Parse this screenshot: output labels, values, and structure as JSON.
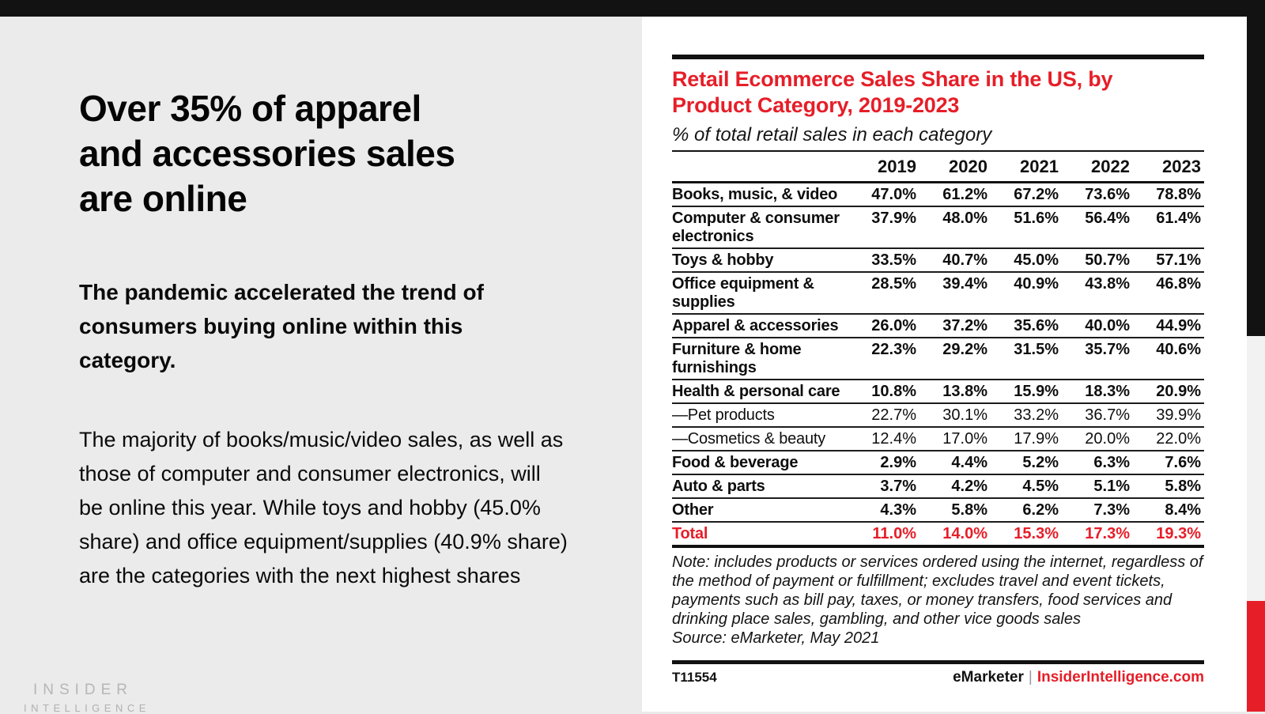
{
  "colors": {
    "accent_red": "#E61E28",
    "top_bar": "#121212",
    "page_background": "#ebebeb",
    "card_background": "#ffffff",
    "logo_gray": "#b6b6b6"
  },
  "left_panel": {
    "heading": "Over 35% of apparel\nand accessories sales\nare online",
    "paragraph_emphasis": "The pandemic accelerated the trend of consumers buying online within this category.",
    "paragraph_body": "The majority of books/music/video sales, as well as those of computer and consumer electronics, will be online this year. While toys and hobby (45.0% share) and office equipment/supplies (40.9% share) are the categories with the next highest shares",
    "logo": {
      "line1": "INSIDER",
      "line2": "INTELLIGENCE"
    }
  },
  "report": {
    "note": "Note: includes products or services ordered using the internet, regardless of the method of payment or fulfillment; excludes travel and event tickets, payments such as bill pay, taxes, or money transfers, food services and drinking place sales, gambling, and other vice goods sales",
    "source": "Source: eMarketer, May 2021",
    "footer": {
      "code": "T11554",
      "brand": "eMarketer",
      "divider": "|",
      "site": "InsiderIntelligence.com"
    }
  },
  "chart_data": {
    "type": "table",
    "title": "Retail Ecommerce Sales Share in the US, by\nProduct Category, 2019-2023",
    "subtitle": "% of total retail sales in each category",
    "columns": [
      "2019",
      "2020",
      "2021",
      "2022",
      "2023"
    ],
    "rows": [
      {
        "label": "Books, music, & video",
        "style": "bold",
        "values": [
          "47.0%",
          "61.2%",
          "67.2%",
          "73.6%",
          "78.8%"
        ]
      },
      {
        "label": "Computer & consumer electronics",
        "style": "bold",
        "values": [
          "37.9%",
          "48.0%",
          "51.6%",
          "56.4%",
          "61.4%"
        ]
      },
      {
        "label": "Toys & hobby",
        "style": "bold",
        "values": [
          "33.5%",
          "40.7%",
          "45.0%",
          "50.7%",
          "57.1%"
        ]
      },
      {
        "label": "Office equipment & supplies",
        "style": "bold",
        "values": [
          "28.5%",
          "39.4%",
          "40.9%",
          "43.8%",
          "46.8%"
        ]
      },
      {
        "label": "Apparel & accessories",
        "style": "bold",
        "values": [
          "26.0%",
          "37.2%",
          "35.6%",
          "40.0%",
          "44.9%"
        ]
      },
      {
        "label": "Furniture & home furnishings",
        "style": "bold",
        "values": [
          "22.3%",
          "29.2%",
          "31.5%",
          "35.7%",
          "40.6%"
        ]
      },
      {
        "label": "Health & personal care",
        "style": "bold",
        "values": [
          "10.8%",
          "13.8%",
          "15.9%",
          "18.3%",
          "20.9%"
        ]
      },
      {
        "label": "—Pet products",
        "style": "sub",
        "values": [
          "22.7%",
          "30.1%",
          "33.2%",
          "36.7%",
          "39.9%"
        ]
      },
      {
        "label": "—Cosmetics & beauty",
        "style": "sub",
        "values": [
          "12.4%",
          "17.0%",
          "17.9%",
          "20.0%",
          "22.0%"
        ]
      },
      {
        "label": "Food & beverage",
        "style": "bold",
        "values": [
          "2.9%",
          "4.4%",
          "5.2%",
          "6.3%",
          "7.6%"
        ]
      },
      {
        "label": "Auto & parts",
        "style": "bold",
        "values": [
          "3.7%",
          "4.2%",
          "4.5%",
          "5.1%",
          "5.8%"
        ]
      },
      {
        "label": "Other",
        "style": "bold",
        "values": [
          "4.3%",
          "5.8%",
          "6.2%",
          "7.3%",
          "8.4%"
        ]
      },
      {
        "label": "Total",
        "style": "total",
        "values": [
          "11.0%",
          "14.0%",
          "15.3%",
          "17.3%",
          "19.3%"
        ]
      }
    ]
  }
}
